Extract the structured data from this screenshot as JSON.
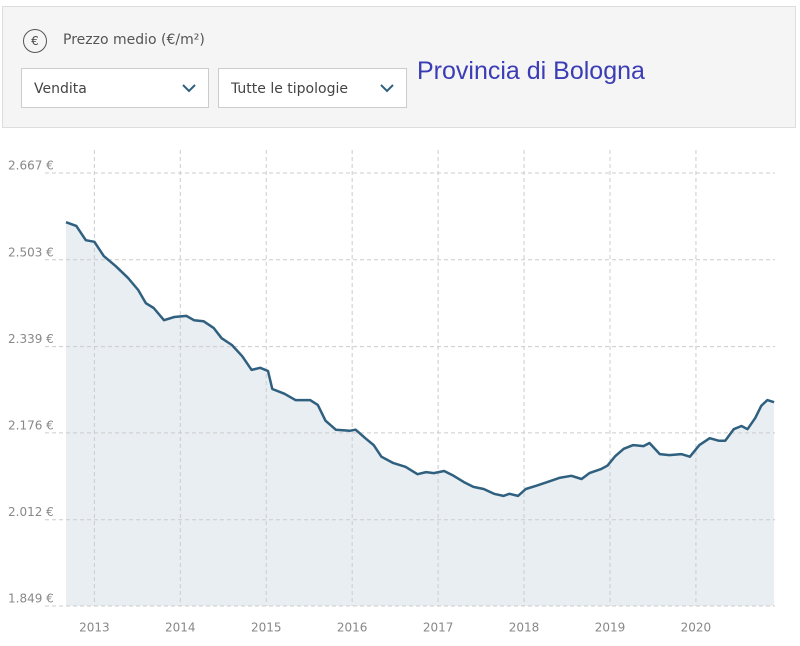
{
  "header": {
    "icon": "€",
    "title": "Prezzo medio (€/m²)",
    "filters": [
      "Vendita",
      "Tutte le tipologie"
    ],
    "region": "Provincia di Bologna"
  },
  "chart_data": {
    "type": "area",
    "color": "#2f607f",
    "fill": "#e9eef2",
    "grid": true,
    "xlim": [
      2012.67,
      2020.92
    ],
    "xticks": [
      2013,
      2014,
      2015,
      2016,
      2017,
      2018,
      2019,
      2020
    ],
    "ylim": [
      1849,
      2667
    ],
    "yticks": [
      {
        "value": 1849,
        "label": "1.849 €"
      },
      {
        "value": 2012,
        "label": "2.012 €"
      },
      {
        "value": 2176,
        "label": "2.176 €"
      },
      {
        "value": 2339,
        "label": "2.339 €"
      },
      {
        "value": 2503,
        "label": "2.503 €"
      },
      {
        "value": 2667,
        "label": "2.667 €"
      }
    ],
    "x": [
      2012.67,
      2012.79,
      2012.9,
      2013.0,
      2013.11,
      2013.25,
      2013.39,
      2013.51,
      2013.6,
      2013.69,
      2013.81,
      2013.93,
      2014.07,
      2014.16,
      2014.27,
      2014.39,
      2014.48,
      2014.6,
      2014.72,
      2014.83,
      2014.93,
      2015.02,
      2015.07,
      2015.21,
      2015.34,
      2015.51,
      2015.6,
      2015.69,
      2015.81,
      2015.97,
      2016.04,
      2016.16,
      2016.25,
      2016.34,
      2016.48,
      2016.62,
      2016.76,
      2016.86,
      2016.95,
      2017.07,
      2017.18,
      2017.3,
      2017.41,
      2017.53,
      2017.65,
      2017.76,
      2017.83,
      2017.93,
      2018.02,
      2018.14,
      2018.27,
      2018.41,
      2018.55,
      2018.67,
      2018.76,
      2018.9,
      2018.97,
      2019.06,
      2019.16,
      2019.27,
      2019.39,
      2019.46,
      2019.58,
      2019.69,
      2019.83,
      2019.93,
      2020.04,
      2020.16,
      2020.27,
      2020.34,
      2020.44,
      2020.53,
      2020.6,
      2020.69,
      2020.76,
      2020.83,
      2020.91
    ],
    "values": [
      2574,
      2567,
      2540,
      2537,
      2510,
      2491,
      2469,
      2446,
      2421,
      2412,
      2389,
      2395,
      2397,
      2389,
      2387,
      2374,
      2355,
      2342,
      2321,
      2295,
      2299,
      2293,
      2259,
      2250,
      2238,
      2238,
      2229,
      2199,
      2182,
      2180,
      2182,
      2165,
      2153,
      2131,
      2119,
      2112,
      2098,
      2102,
      2100,
      2104,
      2095,
      2083,
      2074,
      2070,
      2061,
      2057,
      2061,
      2057,
      2070,
      2076,
      2083,
      2091,
      2095,
      2089,
      2100,
      2108,
      2114,
      2132,
      2146,
      2153,
      2151,
      2157,
      2136,
      2134,
      2136,
      2131,
      2153,
      2166,
      2161,
      2161,
      2183,
      2189,
      2183,
      2204,
      2227,
      2238,
      2234
    ]
  }
}
